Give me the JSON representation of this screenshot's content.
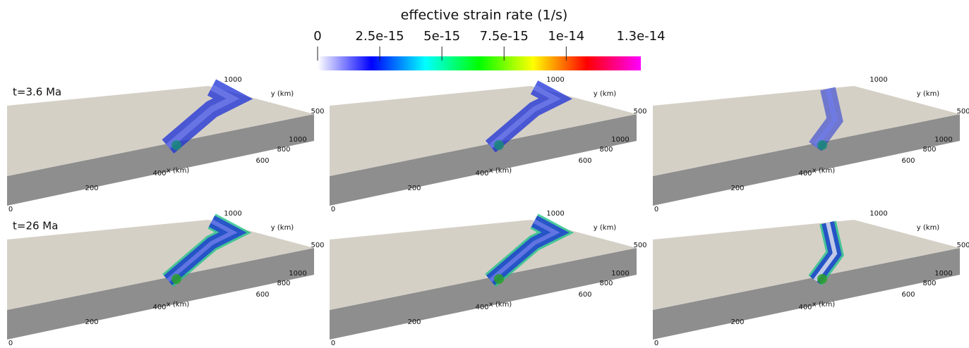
{
  "colorbar": {
    "title": "effective strain rate (1/s)",
    "range": [
      0,
      1.3e-14
    ],
    "ticks": [
      0,
      2.5e-15,
      5e-15,
      7.5e-15,
      1e-14,
      1.3e-14
    ],
    "colors": [
      "#ffffff",
      "#0000ff",
      "#00ffff",
      "#00ff00",
      "#ffff00",
      "#ff0000",
      "#ff00ff"
    ]
  },
  "rows": [
    {
      "label": "t=3.6 Ma"
    },
    {
      "label": "t=26 Ma"
    }
  ],
  "axis_labels": {
    "y_far": "1000",
    "y_title": "y (km)",
    "y_near": "500",
    "x_end": "1000",
    "x_800": "800",
    "x_600": "600",
    "x_title": "x (km)",
    "x_400": "400",
    "x_200": "200",
    "x_0": "0"
  }
}
